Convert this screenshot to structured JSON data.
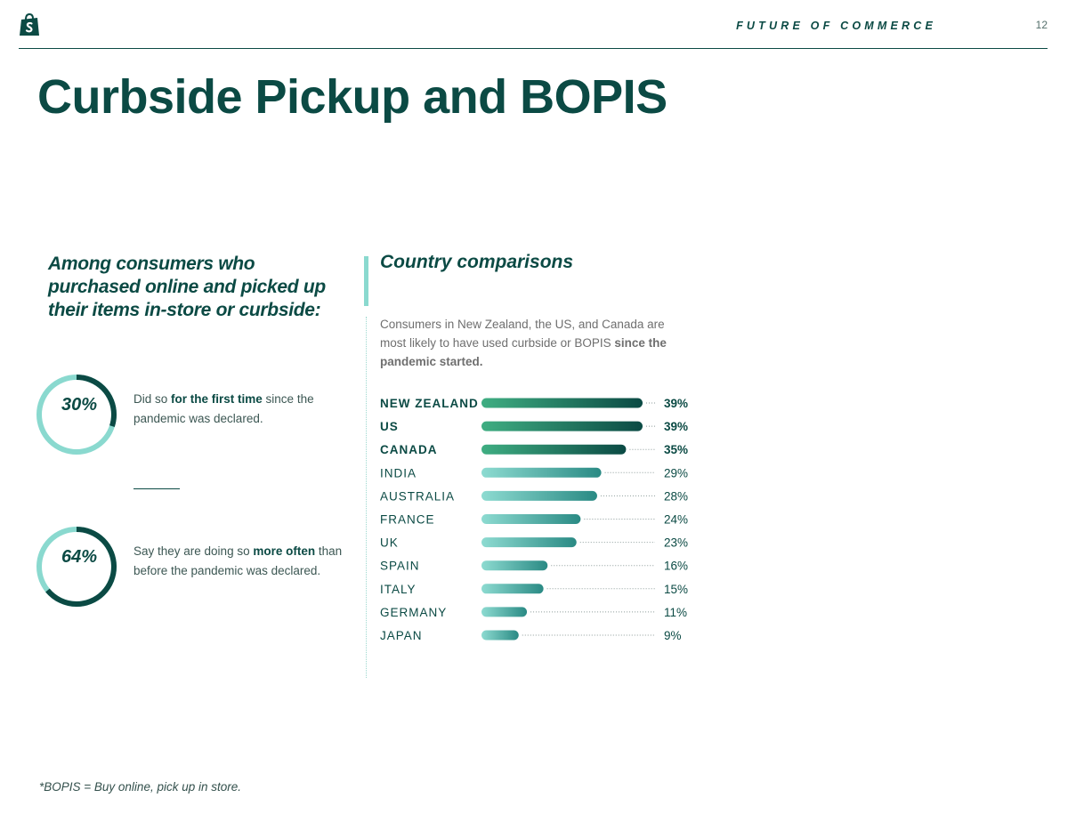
{
  "header": {
    "logo_icon": "shopping-bag-logo-icon",
    "running_title": "FUTURE OF COMMERCE",
    "page_number": "12"
  },
  "title": "Curbside Pickup and BOPIS",
  "left": {
    "intro": "Among consumers who purchased online and picked up their items in-store or curbside:",
    "stats": [
      {
        "value": "30%",
        "fraction": 0.3,
        "desc_pre": "Did so ",
        "desc_bold": "for the first time",
        "desc_post": " since the pandemic was declared."
      },
      {
        "value": "64%",
        "fraction": 0.64,
        "desc_pre": "Say they are doing so ",
        "desc_bold": "more often",
        "desc_post": " than before the pandemic was declared."
      }
    ]
  },
  "right": {
    "title": "Country comparisons",
    "desc_pre": "Consumers in New Zealand, the US, and Canada are most likely to have used curbside or BOPIS ",
    "desc_bold": "since the pandemic started."
  },
  "chart_data": {
    "type": "bar",
    "orientation": "horizontal",
    "categories": [
      "NEW ZEALAND",
      "US",
      "CANADA",
      "INDIA",
      "AUSTRALIA",
      "FRANCE",
      "UK",
      "SPAIN",
      "ITALY",
      "GERMANY",
      "JAPAN"
    ],
    "values": [
      39,
      39,
      35,
      29,
      28,
      24,
      23,
      16,
      15,
      11,
      9
    ],
    "value_labels": [
      "39%",
      "39%",
      "35%",
      "29%",
      "28%",
      "24%",
      "23%",
      "16%",
      "15%",
      "11%",
      "9%"
    ],
    "highlighted": [
      "NEW ZEALAND",
      "US",
      "CANADA"
    ],
    "xlim": [
      0,
      39
    ],
    "colors": {
      "highlight_start": "#3fae82",
      "highlight_end": "#0b4a44",
      "normal_start": "#8ddbd1",
      "normal_end": "#2a8a84"
    }
  },
  "footnote": "*BOPIS = Buy online, pick up in store.",
  "colors": {
    "primary": "#0b4a44",
    "ring_light": "#8ad9cf",
    "accent": "#8ad9cf"
  }
}
